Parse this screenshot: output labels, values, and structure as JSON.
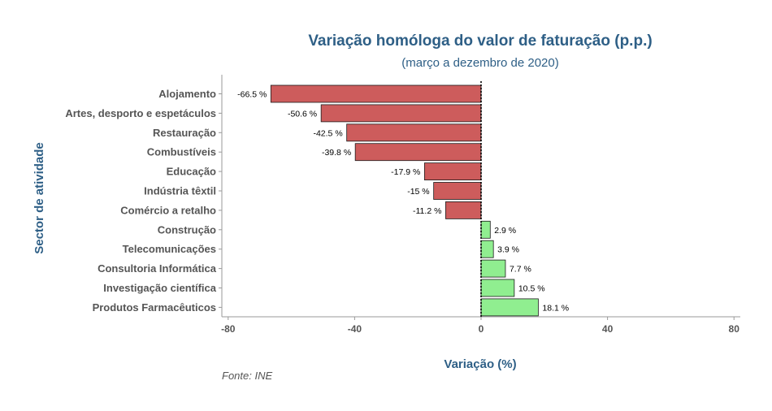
{
  "chart_data": {
    "type": "bar",
    "orientation": "horizontal",
    "title": "Variação homóloga do valor de faturação (p.p.)",
    "subtitle": "(março a dezembro de 2020)",
    "xlabel": "Variação (%)",
    "ylabel": "Sector de atividade",
    "xlim": [
      -82,
      82
    ],
    "xticks": [
      -80,
      -40,
      0,
      40,
      80
    ],
    "xtick_labels": [
      "-80",
      "-40",
      "0",
      "40",
      "80"
    ],
    "reference_line": 0,
    "categories": [
      "Alojamento",
      "Artes, desporto e espetáculos",
      "Restauração",
      "Combustíveis",
      "Educação",
      "Indústria têxtil",
      "Comércio a retalho",
      "Construção",
      "Telecomunicações",
      "Consultoria Informática",
      "Investigação científica",
      "Produtos Farmacêuticos"
    ],
    "values": [
      -66.5,
      -50.6,
      -42.5,
      -39.8,
      -17.9,
      -15,
      -11.2,
      2.9,
      3.9,
      7.7,
      10.5,
      18.1
    ],
    "data_labels": [
      "-66.5 %",
      "-50.6 %",
      "-42.5 %",
      "-39.8 %",
      "-17.9 %",
      "-15 %",
      "-11.2 %",
      "2.9 %",
      "3.9 %",
      "7.7 %",
      "10.5 %",
      "18.1 %"
    ],
    "caption": "Fonte: INE",
    "colors": {
      "negative": "#cd5c5c",
      "positive": "#90ee90",
      "bar_stroke": "#1a1a1a",
      "title": "#2e5f86",
      "labels": "#555555",
      "axis": "#999999",
      "data_label": "#000000"
    }
  }
}
